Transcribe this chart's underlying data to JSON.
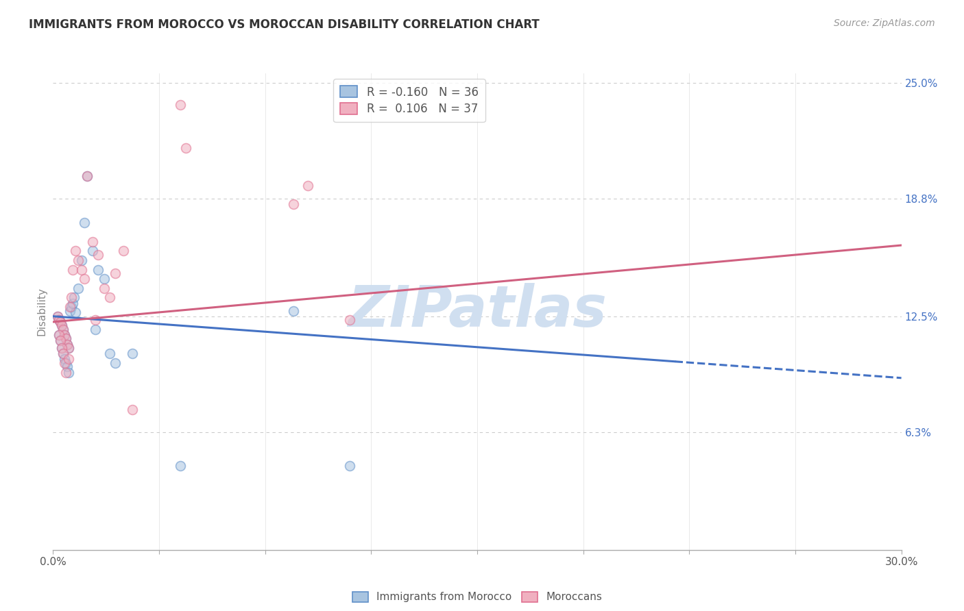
{
  "title": "IMMIGRANTS FROM MOROCCO VS MOROCCAN DISABILITY CORRELATION CHART",
  "source": "Source: ZipAtlas.com",
  "ylabel": "Disability",
  "xlim": [
    0.0,
    30.0
  ],
  "ylim": [
    0.0,
    25.5
  ],
  "yticks": [
    6.3,
    12.5,
    18.8,
    25.0
  ],
  "ytick_labels": [
    "6.3%",
    "12.5%",
    "18.8%",
    "25.0%"
  ],
  "xtick_positions": [
    0,
    3.75,
    7.5,
    11.25,
    15.0,
    18.75,
    22.5,
    26.25,
    30.0
  ],
  "grid_color": "#cccccc",
  "background_color": "#ffffff",
  "blue_color": "#a8c4e0",
  "pink_color": "#f0b0c0",
  "blue_edge_color": "#6090c8",
  "pink_edge_color": "#e07090",
  "blue_line_color": "#4472c4",
  "pink_line_color": "#d06080",
  "legend_R_blue": "-0.160",
  "legend_N_blue": "36",
  "legend_R_pink": "0.106",
  "legend_N_pink": "37",
  "blue_scatter_x": [
    0.15,
    0.2,
    0.25,
    0.3,
    0.35,
    0.4,
    0.45,
    0.5,
    0.55,
    0.6,
    0.65,
    0.7,
    0.75,
    0.8,
    0.9,
    1.0,
    1.1,
    1.2,
    1.4,
    1.6,
    1.8,
    2.0,
    2.2,
    0.2,
    0.25,
    0.3,
    0.35,
    0.4,
    0.45,
    0.5,
    0.55,
    1.5,
    8.5,
    2.8,
    4.5,
    10.5
  ],
  "blue_scatter_y": [
    12.5,
    12.3,
    12.2,
    12.0,
    11.8,
    11.5,
    11.3,
    11.0,
    10.8,
    12.8,
    13.0,
    13.2,
    13.5,
    12.7,
    14.0,
    15.5,
    17.5,
    20.0,
    16.0,
    15.0,
    14.5,
    10.5,
    10.0,
    11.5,
    11.2,
    10.8,
    10.5,
    10.2,
    10.0,
    9.8,
    9.5,
    11.8,
    12.8,
    10.5,
    4.5,
    4.5
  ],
  "pink_scatter_x": [
    0.15,
    0.2,
    0.25,
    0.3,
    0.35,
    0.4,
    0.45,
    0.5,
    0.55,
    0.6,
    0.65,
    0.7,
    0.8,
    0.9,
    1.0,
    1.1,
    1.2,
    1.4,
    1.6,
    1.8,
    2.0,
    2.2,
    2.5,
    0.2,
    0.25,
    0.3,
    0.35,
    0.4,
    0.45,
    0.55,
    1.5,
    2.8,
    8.5,
    10.5,
    4.5,
    4.7,
    9.0
  ],
  "pink_scatter_y": [
    12.5,
    12.3,
    12.2,
    12.0,
    11.8,
    11.5,
    11.3,
    11.0,
    10.8,
    13.0,
    13.5,
    15.0,
    16.0,
    15.5,
    15.0,
    14.5,
    20.0,
    16.5,
    15.8,
    14.0,
    13.5,
    14.8,
    16.0,
    11.5,
    11.2,
    10.8,
    10.5,
    10.0,
    9.5,
    10.2,
    12.3,
    7.5,
    18.5,
    12.3,
    23.8,
    21.5,
    19.5
  ],
  "blue_trend_start_y": 12.5,
  "blue_trend_end_y": 9.2,
  "blue_solid_end_x": 22.0,
  "pink_trend_start_y": 12.2,
  "pink_trend_end_y": 16.3,
  "watermark_text": "ZIPatlas",
  "watermark_color": "#d0dff0",
  "watermark_fontsize": 60,
  "marker_size": 100,
  "marker_alpha": 0.55,
  "marker_linewidth": 1.2,
  "figsize": [
    14.06,
    8.92
  ],
  "dpi": 100
}
